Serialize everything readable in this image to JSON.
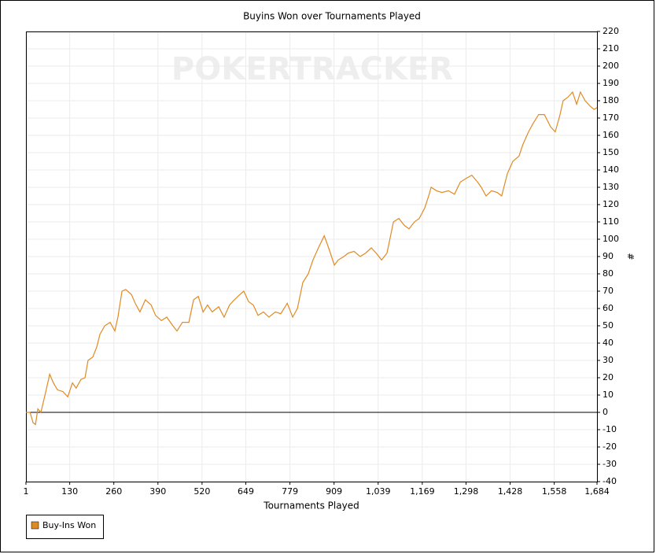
{
  "chart_data": {
    "type": "line",
    "title": "Buyins Won over Tournaments Played",
    "watermark": "POKERTRACKER",
    "xlabel": "Tournaments Played",
    "ylabel": "#",
    "grid": true,
    "xlim": [
      1,
      1684
    ],
    "ylim": [
      -40,
      220
    ],
    "xticks": [
      1,
      130,
      260,
      390,
      520,
      649,
      779,
      909,
      {
        "value": 1039,
        "label": "1,039"
      },
      {
        "value": 1169,
        "label": "1,169"
      },
      {
        "value": 1298,
        "label": "1,298"
      },
      {
        "value": 1428,
        "label": "1,428"
      },
      {
        "value": 1558,
        "label": "1,558"
      },
      {
        "value": 1684,
        "label": "1,684"
      }
    ],
    "yticks": [
      -40,
      -30,
      -20,
      -10,
      0,
      10,
      20,
      30,
      40,
      50,
      60,
      70,
      80,
      90,
      100,
      110,
      120,
      130,
      140,
      150,
      160,
      170,
      180,
      190,
      200,
      210,
      220
    ],
    "x": [
      1,
      13,
      22,
      29,
      36,
      45,
      57,
      71,
      82,
      94,
      110,
      124,
      138,
      149,
      163,
      175,
      184,
      198,
      210,
      219,
      233,
      249,
      263,
      272,
      284,
      295,
      312,
      323,
      337,
      353,
      370,
      383,
      400,
      416,
      434,
      446,
      462,
      481,
      495,
      509,
      523,
      536,
      550,
      569,
      585,
      601,
      615,
      631,
      643,
      657,
      671,
      685,
      701,
      717,
      736,
      752,
      771,
      787,
      801,
      817,
      833,
      847,
      863,
      880,
      893,
      910,
      921,
      938,
      951,
      968,
      986,
      1002,
      1019,
      1033,
      1049,
      1065,
      1084,
      1100,
      1116,
      1130,
      1146,
      1160,
      1176,
      1188,
      1195,
      1211,
      1227,
      1246,
      1264,
      1281,
      1297,
      1315,
      1332,
      1343,
      1357,
      1373,
      1390,
      1403,
      1420,
      1436,
      1454,
      1466,
      1482,
      1496,
      1512,
      1529,
      1547,
      1561,
      1575,
      1584,
      1598,
      1612,
      1624,
      1635,
      1649,
      1663,
      1675,
      1684
    ],
    "series": [
      {
        "name": "Buy-Ins Won",
        "color": "#e08a24",
        "values": [
          0,
          0,
          -6,
          -7,
          2,
          0,
          10,
          22,
          17,
          13,
          12,
          9,
          17,
          14,
          19,
          20,
          30,
          32,
          38,
          45,
          50,
          52,
          47,
          55,
          70,
          71,
          68,
          63,
          58,
          65,
          62,
          56,
          53,
          55,
          50,
          47,
          52,
          52,
          65,
          67,
          58,
          62,
          58,
          61,
          55,
          62,
          65,
          68,
          70,
          64,
          62,
          56,
          58,
          55,
          58,
          57,
          63,
          55,
          60,
          75,
          80,
          88,
          95,
          102,
          95,
          85,
          88,
          90,
          92,
          93,
          90,
          92,
          95,
          92,
          88,
          92,
          110,
          112,
          108,
          106,
          110,
          112,
          118,
          125,
          130,
          128,
          127,
          128,
          126,
          133,
          135,
          137,
          133,
          130,
          125,
          128,
          127,
          125,
          138,
          145,
          148,
          155,
          162,
          167,
          172,
          172,
          165,
          162,
          172,
          180,
          182,
          185,
          178,
          185,
          180,
          177,
          175,
          176
        ]
      }
    ]
  }
}
